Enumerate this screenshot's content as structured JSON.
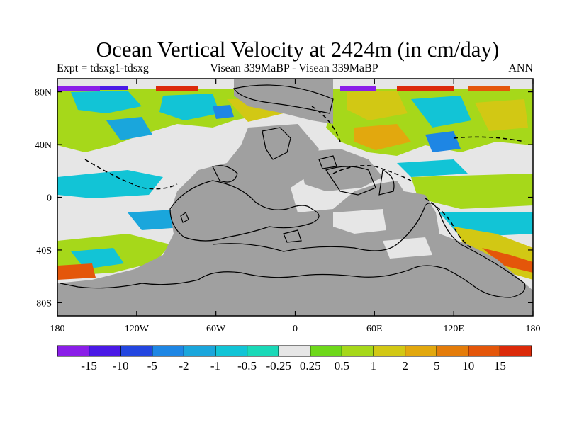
{
  "title": "Ocean Vertical Velocity at 2424m (in cm/day)",
  "subtitle_left": "Expt = tdsxg1-tdsxg",
  "subtitle_center": "Visean 339MaBP - Visean 339MaBP",
  "subtitle_right": "ANN",
  "chart_data": {
    "type": "heatmap",
    "projection": "cylindrical-equidistant",
    "xlim": [
      -180,
      180
    ],
    "ylim": [
      -90,
      90
    ],
    "x_ticks": [
      {
        "value": -180,
        "label": "180"
      },
      {
        "value": -120,
        "label": "120W"
      },
      {
        "value": -60,
        "label": "60W"
      },
      {
        "value": 0,
        "label": "0"
      },
      {
        "value": 60,
        "label": "60E"
      },
      {
        "value": 120,
        "label": "120E"
      },
      {
        "value": 180,
        "label": "180"
      }
    ],
    "y_ticks": [
      {
        "value": 80,
        "label": "80N"
      },
      {
        "value": 40,
        "label": "40N"
      },
      {
        "value": 0,
        "label": "0"
      },
      {
        "value": -40,
        "label": "40S"
      },
      {
        "value": -80,
        "label": "80S"
      }
    ],
    "land_color": "#a0a0a0",
    "colorbar": {
      "levels": [
        "-15",
        "-10",
        "-5",
        "-2",
        "-1",
        "-0.5",
        "-0.25",
        "0.25",
        "0.5",
        "1",
        "2",
        "5",
        "10",
        "15"
      ],
      "colors": [
        "#8a1ee8",
        "#4a19e6",
        "#2346e0",
        "#1e86e4",
        "#1aa6dc",
        "#12c4d6",
        "#1ad9b8",
        "#e6e6e6",
        "#6ed81a",
        "#a6d81a",
        "#d2c814",
        "#e2a80e",
        "#e47c0a",
        "#e4560a",
        "#dc2a0a"
      ]
    }
  }
}
